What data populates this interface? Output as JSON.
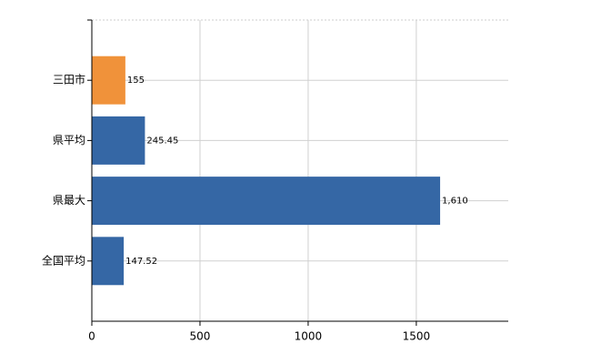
{
  "chart_data": {
    "type": "bar",
    "orientation": "horizontal",
    "categories": [
      "三田市",
      "県平均",
      "県最大",
      "全国平均"
    ],
    "values": [
      155,
      245.45,
      1610,
      147.52
    ],
    "value_labels": [
      "155",
      "245.45",
      "1,610",
      "147.52"
    ],
    "colors": [
      "#f0923a",
      "#3567a5",
      "#3567a5",
      "#3567a5"
    ],
    "xlim": [
      0,
      1925
    ],
    "xticks": [
      0,
      500,
      1000,
      1500
    ],
    "grid": true
  }
}
